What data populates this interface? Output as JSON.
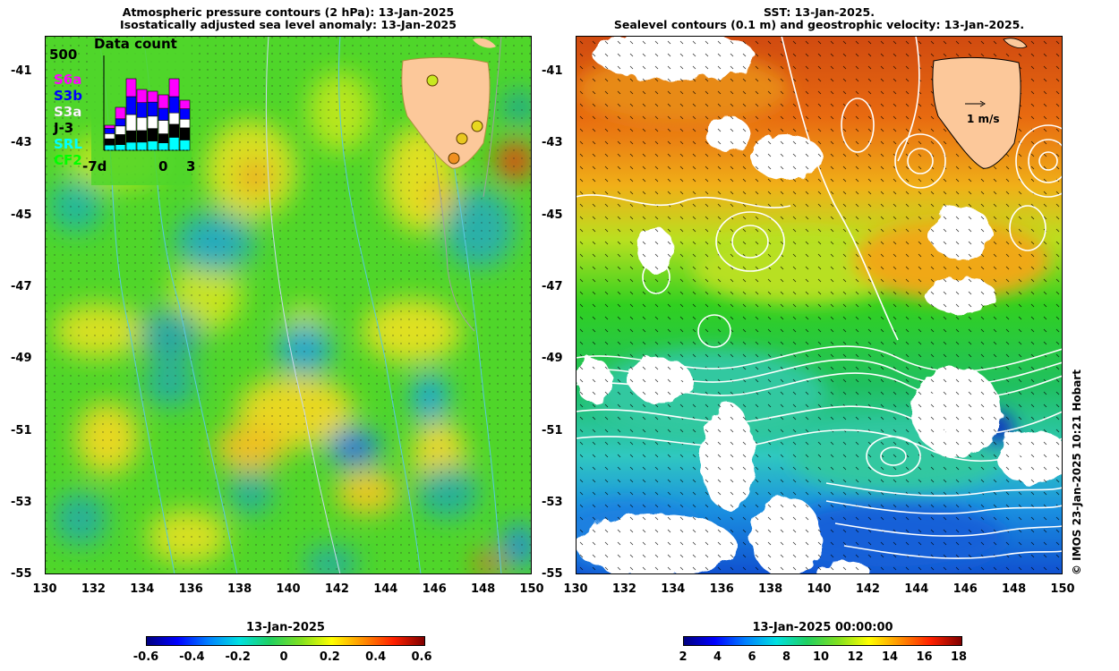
{
  "left_panel": {
    "title_line1": "Atmospheric pressure contours (2 hPa): 13-Jan-2025",
    "title_line2": "Isostatically adjusted sea level anomaly: 13-Jan-2025",
    "inset": {
      "title": "Data count",
      "y_max_label": "500",
      "x_labels": [
        "-7d",
        "0",
        "3"
      ],
      "legend": [
        {
          "label": "S6a",
          "color": "#ff00ff"
        },
        {
          "label": "S3b",
          "color": "#0000ff"
        },
        {
          "label": "S3a",
          "color": "#ffffff"
        },
        {
          "label": "J-3",
          "color": "#000000"
        },
        {
          "label": "SRL",
          "color": "#00ffff"
        },
        {
          "label": "CF2",
          "color": "#00ff00"
        }
      ]
    }
  },
  "right_panel": {
    "title_line1": "SST: 13-Jan-2025.",
    "title_line2": "Sealevel contours (0.1 m) and geostrophic velocity: 13-Jan-2025.",
    "velocity_scale_label": "1 m/s"
  },
  "axes": {
    "lat_ticks": [
      "-41",
      "-43",
      "-45",
      "-47",
      "-49",
      "-51",
      "-53",
      "-55"
    ],
    "lon_ticks": [
      "130",
      "132",
      "134",
      "136",
      "138",
      "140",
      "142",
      "144",
      "146",
      "148",
      "150"
    ]
  },
  "colorbar_left": {
    "title": "13-Jan-2025",
    "ticks": [
      "-0.6",
      "-0.4",
      "-0.2",
      "0",
      "0.2",
      "0.4",
      "0.6"
    ]
  },
  "colorbar_right": {
    "title": "13-Jan-2025 00:00:00",
    "ticks": [
      "2",
      "4",
      "6",
      "8",
      "10",
      "12",
      "14",
      "16",
      "18"
    ]
  },
  "credit": "© IMOS 23-Jan-2025 10:21 Hobart"
}
